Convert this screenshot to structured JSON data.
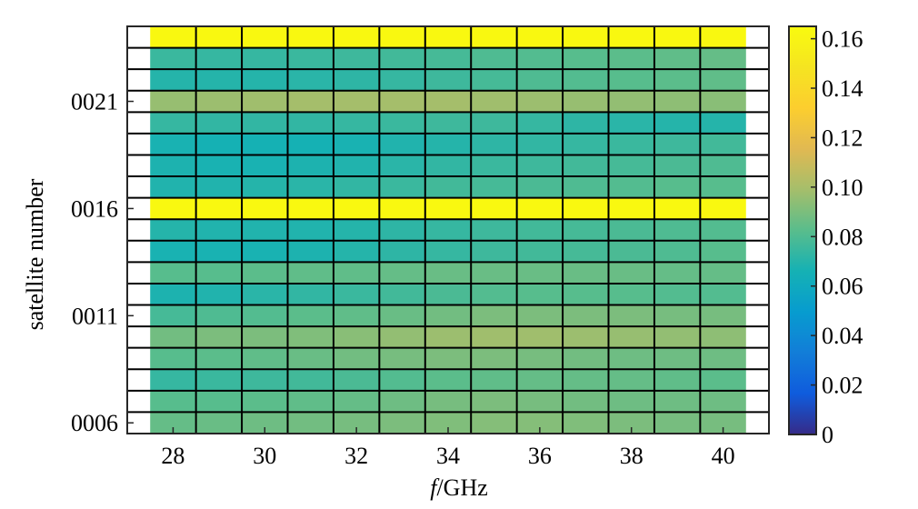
{
  "chart_data": {
    "type": "heatmap",
    "title": "",
    "xlabel_italic": "f",
    "xlabel_rest": "/GHz",
    "ylabel": "satellite number",
    "x": [
      28,
      29,
      30,
      31,
      32,
      33,
      34,
      35,
      36,
      37,
      38,
      39,
      40
    ],
    "xticks": [
      28,
      30,
      32,
      34,
      36,
      38,
      40
    ],
    "xlim": [
      27,
      41
    ],
    "rows_bottom_to_top": [
      6,
      7,
      8,
      9,
      10,
      11,
      12,
      13,
      14,
      15,
      16,
      17,
      18,
      19,
      20,
      21,
      22,
      23,
      24
    ],
    "yticks": [
      {
        "row": 6,
        "label": "0006"
      },
      {
        "row": 11,
        "label": "0011"
      },
      {
        "row": 16,
        "label": "0016"
      },
      {
        "row": 21,
        "label": "0021"
      }
    ],
    "colorbar": {
      "min": 0,
      "max": 0.165,
      "ticks": [
        "0",
        "0.02",
        "0.04",
        "0.06",
        "0.08",
        "0.10",
        "0.12",
        "0.14",
        "0.16"
      ],
      "tick_values": [
        0,
        0.02,
        0.04,
        0.06,
        0.08,
        0.1,
        0.12,
        0.14,
        0.16
      ],
      "colormap": "parula"
    },
    "values_bottom_to_top": [
      [
        0.085,
        0.086,
        0.087,
        0.088,
        0.089,
        0.09,
        0.091,
        0.092,
        0.092,
        0.091,
        0.09,
        0.089,
        0.089
      ],
      [
        0.082,
        0.082,
        0.083,
        0.084,
        0.085,
        0.087,
        0.089,
        0.09,
        0.089,
        0.088,
        0.087,
        0.087,
        0.087
      ],
      [
        0.074,
        0.075,
        0.076,
        0.077,
        0.079,
        0.081,
        0.083,
        0.084,
        0.085,
        0.085,
        0.085,
        0.084,
        0.083
      ],
      [
        0.082,
        0.083,
        0.084,
        0.086,
        0.088,
        0.089,
        0.09,
        0.09,
        0.089,
        0.088,
        0.087,
        0.087,
        0.087
      ],
      [
        0.088,
        0.09,
        0.09,
        0.091,
        0.093,
        0.095,
        0.097,
        0.098,
        0.098,
        0.097,
        0.096,
        0.095,
        0.094
      ],
      [
        0.078,
        0.08,
        0.081,
        0.083,
        0.084,
        0.086,
        0.088,
        0.09,
        0.09,
        0.09,
        0.09,
        0.089,
        0.089
      ],
      [
        0.068,
        0.069,
        0.071,
        0.073,
        0.075,
        0.077,
        0.079,
        0.081,
        0.082,
        0.082,
        0.082,
        0.081,
        0.081
      ],
      [
        0.082,
        0.082,
        0.083,
        0.084,
        0.084,
        0.085,
        0.086,
        0.086,
        0.086,
        0.086,
        0.086,
        0.085,
        0.085
      ],
      [
        0.067,
        0.067,
        0.067,
        0.068,
        0.07,
        0.072,
        0.074,
        0.076,
        0.077,
        0.078,
        0.079,
        0.08,
        0.082
      ],
      [
        0.07,
        0.069,
        0.069,
        0.069,
        0.07,
        0.072,
        0.074,
        0.076,
        0.077,
        0.078,
        0.079,
        0.08,
        0.081
      ],
      [
        0.163,
        0.163,
        0.163,
        0.163,
        0.163,
        0.163,
        0.163,
        0.163,
        0.163,
        0.163,
        0.163,
        0.163,
        0.163
      ],
      [
        0.069,
        0.069,
        0.07,
        0.071,
        0.073,
        0.075,
        0.077,
        0.078,
        0.079,
        0.08,
        0.081,
        0.082,
        0.082
      ],
      [
        0.068,
        0.067,
        0.067,
        0.068,
        0.069,
        0.071,
        0.073,
        0.075,
        0.076,
        0.077,
        0.078,
        0.079,
        0.08
      ],
      [
        0.067,
        0.066,
        0.066,
        0.066,
        0.067,
        0.069,
        0.07,
        0.072,
        0.073,
        0.074,
        0.075,
        0.076,
        0.077
      ],
      [
        0.074,
        0.073,
        0.073,
        0.073,
        0.074,
        0.075,
        0.076,
        0.076,
        0.074,
        0.072,
        0.071,
        0.07,
        0.07
      ],
      [
        0.096,
        0.097,
        0.098,
        0.099,
        0.099,
        0.099,
        0.099,
        0.098,
        0.097,
        0.096,
        0.095,
        0.094,
        0.093
      ],
      [
        0.07,
        0.07,
        0.07,
        0.071,
        0.072,
        0.074,
        0.076,
        0.078,
        0.08,
        0.081,
        0.082,
        0.083,
        0.084
      ],
      [
        0.075,
        0.074,
        0.074,
        0.075,
        0.076,
        0.077,
        0.078,
        0.08,
        0.081,
        0.082,
        0.083,
        0.084,
        0.085
      ],
      [
        0.163,
        0.163,
        0.163,
        0.163,
        0.163,
        0.163,
        0.163,
        0.163,
        0.163,
        0.163,
        0.163,
        0.163,
        0.163
      ]
    ]
  }
}
